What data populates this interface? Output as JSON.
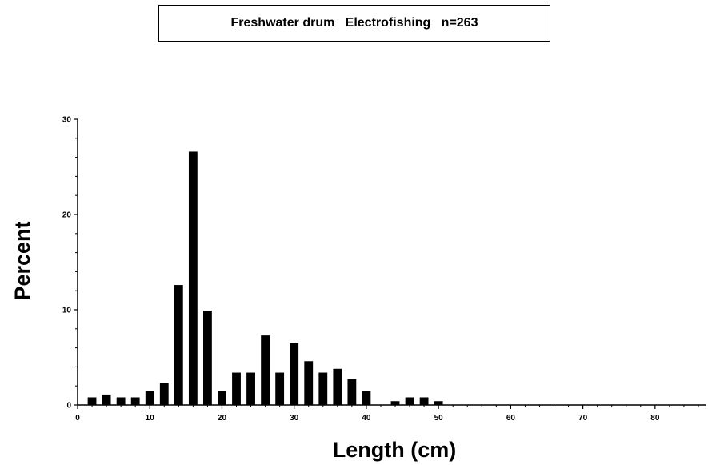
{
  "chart_data": {
    "type": "bar",
    "title": "Freshwater drum   Electrofishing   n=263",
    "xlabel": "Length  (cm)",
    "ylabel": "Percent",
    "xlim": [
      0,
      87
    ],
    "ylim": [
      0,
      30
    ],
    "xticks": [
      0,
      10,
      20,
      30,
      40,
      50,
      60,
      70,
      80
    ],
    "yticks": [
      0,
      10,
      20,
      30
    ],
    "grid": false,
    "legend": "none",
    "bar_color": "#000000",
    "bins": [
      {
        "x": 2,
        "value": 0.8
      },
      {
        "x": 4,
        "value": 1.1
      },
      {
        "x": 6,
        "value": 0.8
      },
      {
        "x": 8,
        "value": 0.8
      },
      {
        "x": 10,
        "value": 1.5
      },
      {
        "x": 12,
        "value": 2.3
      },
      {
        "x": 14,
        "value": 12.6
      },
      {
        "x": 16,
        "value": 26.6
      },
      {
        "x": 18,
        "value": 9.9
      },
      {
        "x": 20,
        "value": 1.5
      },
      {
        "x": 22,
        "value": 3.4
      },
      {
        "x": 24,
        "value": 3.4
      },
      {
        "x": 26,
        "value": 7.3
      },
      {
        "x": 28,
        "value": 3.4
      },
      {
        "x": 30,
        "value": 6.5
      },
      {
        "x": 32,
        "value": 4.6
      },
      {
        "x": 34,
        "value": 3.4
      },
      {
        "x": 36,
        "value": 3.8
      },
      {
        "x": 38,
        "value": 2.7
      },
      {
        "x": 40,
        "value": 1.5
      },
      {
        "x": 44,
        "value": 0.4
      },
      {
        "x": 46,
        "value": 0.8
      },
      {
        "x": 48,
        "value": 0.8
      },
      {
        "x": 50,
        "value": 0.4
      }
    ]
  }
}
